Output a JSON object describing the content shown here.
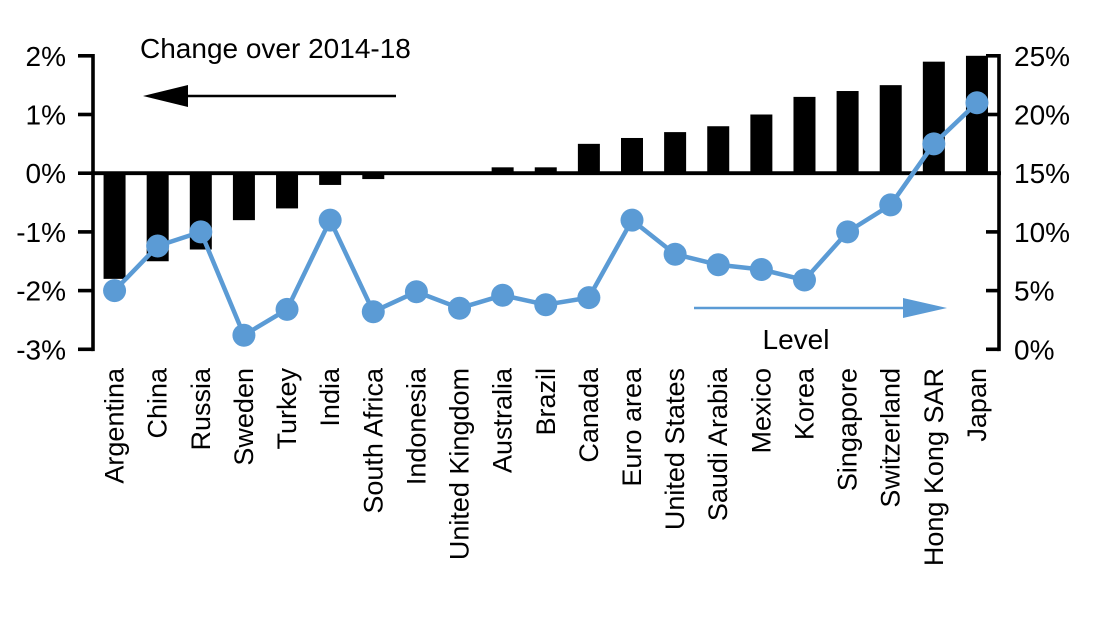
{
  "chart_data": {
    "type": "bar",
    "subtype": "combo-bar-line-dual-axis",
    "title": "",
    "categories": [
      "Argentina",
      "China",
      "Russia",
      "Sweden",
      "Turkey",
      "India",
      "South Africa",
      "Indonesia",
      "United Kingdom",
      "Australia",
      "Brazil",
      "Canada",
      "Euro area",
      "United States",
      "Saudi Arabia",
      "Mexico",
      "Korea",
      "Singapore",
      "Switzerland",
      "Hong Kong SAR",
      "Japan"
    ],
    "series": [
      {
        "name": "Change over 2014-18",
        "type": "bar",
        "axis": "left",
        "color": "#000000",
        "values": [
          -1.8,
          -1.5,
          -1.3,
          -0.8,
          -0.6,
          -0.2,
          -0.1,
          0.0,
          0.0,
          0.1,
          0.1,
          0.5,
          0.6,
          0.7,
          0.8,
          1.0,
          1.3,
          1.4,
          1.5,
          1.9,
          2.0
        ]
      },
      {
        "name": "Level",
        "type": "line",
        "axis": "right",
        "color": "#5B9BD5",
        "values": [
          5.0,
          8.8,
          10.0,
          1.2,
          3.4,
          11.0,
          3.2,
          4.9,
          3.5,
          4.6,
          3.8,
          4.4,
          11.0,
          8.1,
          7.2,
          6.8,
          5.9,
          10.0,
          12.3,
          17.5,
          21.0
        ]
      }
    ],
    "left_axis": {
      "unit": "%",
      "min": -3,
      "max": 2,
      "tick_values": [
        2,
        1,
        0,
        -1,
        -2,
        -3
      ],
      "tick_labels": [
        "2%",
        "1%",
        "0%",
        "-1%",
        "-2%",
        "-3%"
      ]
    },
    "right_axis": {
      "unit": "%",
      "min": 0,
      "max": 25,
      "tick_values": [
        25,
        20,
        15,
        10,
        5,
        0
      ],
      "tick_labels": [
        "25%",
        "20%",
        "15%",
        "10%",
        "5%",
        "0%"
      ]
    },
    "annotations": {
      "bar_series_label": "Change over 2014-18",
      "bar_series_arrow": "left",
      "line_series_label": "Level",
      "line_series_arrow": "right"
    },
    "grid": false,
    "legend_position": "in-plot-arrow-annotations",
    "xlabel": "",
    "ylabel_left": "Change over 2014-18",
    "ylabel_right": "Level"
  },
  "colors": {
    "bar": "#000000",
    "line": "#5B9BD5",
    "axis": "#000000",
    "text": "#000000",
    "background": "#FFFFFF"
  }
}
